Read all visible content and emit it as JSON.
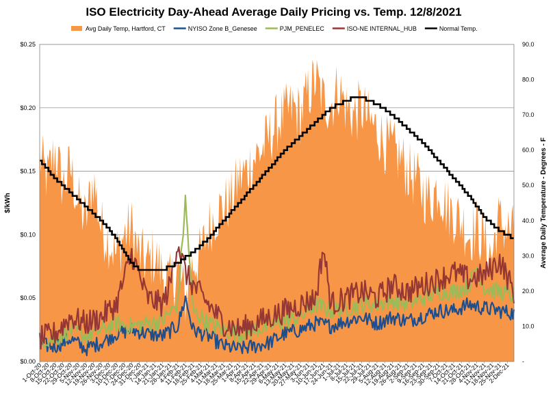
{
  "chart_data": {
    "type": "area",
    "title": "ISO Electricity Day-Ahead Average Daily Pricing vs. Temp. 12/8/2021",
    "ylabel": "$/kWh",
    "y2label": "Average Daily Temperature - Degrees - F",
    "ylim": [
      0,
      0.25
    ],
    "y2lim": [
      0,
      90
    ],
    "y_ticks": [
      "$0.00",
      "$0.05",
      "$0.10",
      "$0.15",
      "$0.20",
      "$0.25"
    ],
    "y2_ticks": [
      "-",
      "10.0",
      "20.0",
      "30.0",
      "40.0",
      "50.0",
      "60.0",
      "70.0",
      "80.0",
      "90.0"
    ],
    "grid": true,
    "legend_position": "top",
    "x_date_start": "1-Oct-20",
    "x_date_end": "8-Dec-21",
    "x_tick_labels": [
      "1-Oct-20",
      "8-Oct-20",
      "15-Oct-20",
      "22-Oct-20",
      "29-Oct-20",
      "5-Nov-20",
      "12-Nov-20",
      "19-Nov-20",
      "26-Nov-20",
      "3-Dec-20",
      "10-Dec-20",
      "17-Dec-20",
      "24-Dec-20",
      "31-Dec-20",
      "7-Jan-21",
      "14-Jan-21",
      "21-Jan-21",
      "28-Jan-21",
      "4-Feb-21",
      "11-Feb-21",
      "18-Feb-21",
      "25-Feb-21",
      "4-Mar-21",
      "11-Mar-21",
      "18-Mar-21",
      "25-Mar-21",
      "1-Apr-21",
      "8-Apr-21",
      "15-Apr-21",
      "22-Apr-21",
      "29-Apr-21",
      "6-May-21",
      "13-May-21",
      "20-May-21",
      "27-May-21",
      "3-Jun-21",
      "10-Jun-21",
      "17-Jun-21",
      "24-Jun-21",
      "1-Jul-21",
      "8-Jul-21",
      "15-Jul-21",
      "22-Jul-21",
      "29-Jul-21",
      "5-Aug-21",
      "12-Aug-21",
      "19-Aug-21",
      "26-Aug-21",
      "2-Sep-21",
      "9-Sep-21",
      "16-Sep-21",
      "23-Sep-21",
      "30-Sep-21",
      "7-Oct-21",
      "14-Oct-21",
      "21-Oct-21",
      "28-Oct-21",
      "4-Nov-21",
      "11-Nov-21",
      "18-Nov-21",
      "25-Nov-21",
      "2-Dec-21"
    ],
    "series": [
      {
        "name": "Avg Daily Temp, Hartford, CT",
        "axis": "right",
        "kind": "area",
        "color": "#f79646",
        "keypoints": [
          [
            0,
            58
          ],
          [
            7,
            52
          ],
          [
            14,
            60
          ],
          [
            21,
            50
          ],
          [
            28,
            55
          ],
          [
            35,
            45
          ],
          [
            42,
            40
          ],
          [
            49,
            52
          ],
          [
            56,
            38
          ],
          [
            63,
            35
          ],
          [
            70,
            30
          ],
          [
            77,
            36
          ],
          [
            84,
            38
          ],
          [
            91,
            30
          ],
          [
            98,
            28
          ],
          [
            105,
            30
          ],
          [
            112,
            25
          ],
          [
            119,
            22
          ],
          [
            126,
            26
          ],
          [
            133,
            18
          ],
          [
            140,
            28
          ],
          [
            147,
            30
          ],
          [
            154,
            38
          ],
          [
            161,
            42
          ],
          [
            168,
            44
          ],
          [
            175,
            46
          ],
          [
            182,
            52
          ],
          [
            189,
            54
          ],
          [
            196,
            58
          ],
          [
            203,
            60
          ],
          [
            210,
            64
          ],
          [
            217,
            68
          ],
          [
            224,
            70
          ],
          [
            231,
            72
          ],
          [
            238,
            70
          ],
          [
            245,
            76
          ],
          [
            252,
            80
          ],
          [
            259,
            74
          ],
          [
            266,
            73
          ],
          [
            273,
            78
          ],
          [
            280,
            72
          ],
          [
            287,
            70
          ],
          [
            294,
            72
          ],
          [
            301,
            68
          ],
          [
            308,
            66
          ],
          [
            315,
            62
          ],
          [
            322,
            60
          ],
          [
            329,
            58
          ],
          [
            336,
            54
          ],
          [
            343,
            52
          ],
          [
            350,
            48
          ],
          [
            357,
            46
          ],
          [
            364,
            50
          ],
          [
            371,
            44
          ],
          [
            378,
            42
          ],
          [
            385,
            40
          ],
          [
            392,
            36
          ],
          [
            399,
            38
          ],
          [
            406,
            34
          ],
          [
            413,
            30
          ],
          [
            418,
            40
          ],
          [
            433,
            36
          ]
        ]
      },
      {
        "name": "NYISO Zone B_Genesee",
        "axis": "left",
        "kind": "line",
        "color": "#1f4e8c",
        "keypoints": [
          [
            0,
            0.013
          ],
          [
            14,
            0.012
          ],
          [
            28,
            0.018
          ],
          [
            42,
            0.01
          ],
          [
            56,
            0.015
          ],
          [
            70,
            0.022
          ],
          [
            84,
            0.025
          ],
          [
            98,
            0.022
          ],
          [
            112,
            0.02
          ],
          [
            126,
            0.028
          ],
          [
            133,
            0.05
          ],
          [
            140,
            0.025
          ],
          [
            154,
            0.02
          ],
          [
            168,
            0.012
          ],
          [
            182,
            0.01
          ],
          [
            196,
            0.012
          ],
          [
            210,
            0.015
          ],
          [
            224,
            0.022
          ],
          [
            238,
            0.025
          ],
          [
            252,
            0.03
          ],
          [
            266,
            0.028
          ],
          [
            280,
            0.032
          ],
          [
            294,
            0.035
          ],
          [
            308,
            0.03
          ],
          [
            322,
            0.035
          ],
          [
            336,
            0.032
          ],
          [
            350,
            0.036
          ],
          [
            364,
            0.04
          ],
          [
            378,
            0.04
          ],
          [
            392,
            0.045
          ],
          [
            406,
            0.042
          ],
          [
            420,
            0.04
          ],
          [
            433,
            0.038
          ]
        ]
      },
      {
        "name": "PJM_PENELEC",
        "axis": "left",
        "kind": "line",
        "color": "#9bbb59",
        "keypoints": [
          [
            0,
            0.017
          ],
          [
            14,
            0.018
          ],
          [
            28,
            0.025
          ],
          [
            42,
            0.02
          ],
          [
            56,
            0.025
          ],
          [
            70,
            0.03
          ],
          [
            84,
            0.028
          ],
          [
            98,
            0.03
          ],
          [
            112,
            0.032
          ],
          [
            126,
            0.045
          ],
          [
            133,
            0.127
          ],
          [
            140,
            0.04
          ],
          [
            154,
            0.03
          ],
          [
            168,
            0.025
          ],
          [
            182,
            0.022
          ],
          [
            196,
            0.025
          ],
          [
            210,
            0.028
          ],
          [
            224,
            0.032
          ],
          [
            238,
            0.035
          ],
          [
            252,
            0.045
          ],
          [
            266,
            0.04
          ],
          [
            280,
            0.042
          ],
          [
            294,
            0.045
          ],
          [
            308,
            0.045
          ],
          [
            322,
            0.048
          ],
          [
            336,
            0.045
          ],
          [
            350,
            0.05
          ],
          [
            364,
            0.055
          ],
          [
            378,
            0.055
          ],
          [
            392,
            0.06
          ],
          [
            399,
            0.075
          ],
          [
            406,
            0.058
          ],
          [
            420,
            0.055
          ],
          [
            433,
            0.052
          ]
        ]
      },
      {
        "name": "ISO-NE INTERNAL_HUB",
        "axis": "left",
        "kind": "line",
        "color": "#953735",
        "keypoints": [
          [
            0,
            0.018
          ],
          [
            14,
            0.022
          ],
          [
            28,
            0.035
          ],
          [
            42,
            0.03
          ],
          [
            56,
            0.035
          ],
          [
            70,
            0.045
          ],
          [
            84,
            0.085
          ],
          [
            98,
            0.05
          ],
          [
            112,
            0.045
          ],
          [
            119,
            0.06
          ],
          [
            126,
            0.095
          ],
          [
            133,
            0.07
          ],
          [
            140,
            0.06
          ],
          [
            154,
            0.045
          ],
          [
            168,
            0.03
          ],
          [
            182,
            0.025
          ],
          [
            196,
            0.03
          ],
          [
            210,
            0.035
          ],
          [
            224,
            0.04
          ],
          [
            238,
            0.045
          ],
          [
            252,
            0.05
          ],
          [
            259,
            0.09
          ],
          [
            266,
            0.045
          ],
          [
            280,
            0.05
          ],
          [
            294,
            0.055
          ],
          [
            308,
            0.05
          ],
          [
            322,
            0.06
          ],
          [
            336,
            0.055
          ],
          [
            350,
            0.06
          ],
          [
            364,
            0.065
          ],
          [
            378,
            0.07
          ],
          [
            392,
            0.065
          ],
          [
            406,
            0.068
          ],
          [
            420,
            0.08
          ],
          [
            433,
            0.055
          ]
        ]
      },
      {
        "name": "Normal Temp.",
        "axis": "right",
        "kind": "step",
        "color": "#000000",
        "keypoints": [
          [
            0,
            57
          ],
          [
            14,
            52
          ],
          [
            28,
            48
          ],
          [
            42,
            44
          ],
          [
            56,
            40
          ],
          [
            70,
            35
          ],
          [
            77,
            31
          ],
          [
            84,
            28
          ],
          [
            91,
            26
          ],
          [
            98,
            26
          ],
          [
            105,
            26
          ],
          [
            112,
            26
          ],
          [
            119,
            27
          ],
          [
            126,
            28
          ],
          [
            140,
            31
          ],
          [
            154,
            35
          ],
          [
            168,
            40
          ],
          [
            182,
            45
          ],
          [
            196,
            50
          ],
          [
            210,
            55
          ],
          [
            224,
            60
          ],
          [
            238,
            64
          ],
          [
            252,
            68
          ],
          [
            266,
            72
          ],
          [
            280,
            74
          ],
          [
            287,
            75
          ],
          [
            294,
            75
          ],
          [
            301,
            74
          ],
          [
            308,
            73
          ],
          [
            322,
            70
          ],
          [
            336,
            66
          ],
          [
            350,
            62
          ],
          [
            364,
            57
          ],
          [
            378,
            52
          ],
          [
            392,
            47
          ],
          [
            406,
            41
          ],
          [
            420,
            37
          ],
          [
            433,
            35
          ]
        ]
      }
    ]
  }
}
